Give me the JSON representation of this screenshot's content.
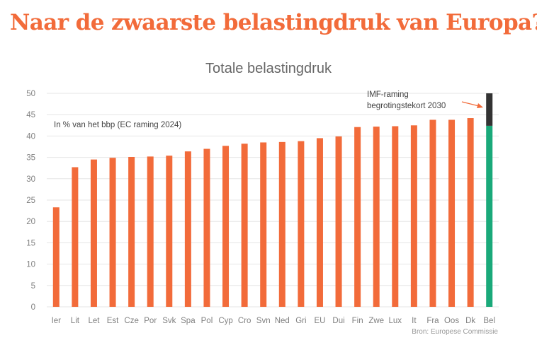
{
  "headline": "Naar de zwaarste belastingdruk van Europa?",
  "colors": {
    "headline": "#f26b3a",
    "bar": "#f26b3a",
    "highlight_base": "#1aa97a",
    "highlight_top": "#333333",
    "grid": "#e6e6e6"
  },
  "chart_data": {
    "type": "bar",
    "title": "Totale belastingdruk",
    "subtitle": "In % van het bbp (EC raming 2024)",
    "xlabel": "",
    "ylabel": "",
    "ylim": [
      0,
      50
    ],
    "yticks": [
      0,
      5,
      10,
      15,
      20,
      25,
      30,
      35,
      40,
      45,
      50
    ],
    "grid": true,
    "categories": [
      "Ier",
      "Lit",
      "Let",
      "Est",
      "Cze",
      "Por",
      "Svk",
      "Spa",
      "Pol",
      "Cyp",
      "Cro",
      "Svn",
      "Ned",
      "Gri",
      "EU",
      "Dui",
      "Fin",
      "Zwe",
      "Lux",
      "It",
      "Fra",
      "Oos",
      "Dk",
      "Bel"
    ],
    "values": [
      23.3,
      32.7,
      34.5,
      34.9,
      35.1,
      35.2,
      35.4,
      36.4,
      37.0,
      37.7,
      38.2,
      38.5,
      38.6,
      38.8,
      39.5,
      39.9,
      42.1,
      42.2,
      42.3,
      42.5,
      43.8,
      43.8,
      44.2,
      42.4
    ],
    "stacked_extra": {
      "category": "Bel",
      "value": 7.6,
      "label": "IMF-raming begrotingstekort 2030"
    },
    "annotation": [
      "IMF-raming",
      "begrotingstekort 2030"
    ],
    "source": "Bron: Europese Commissie"
  }
}
